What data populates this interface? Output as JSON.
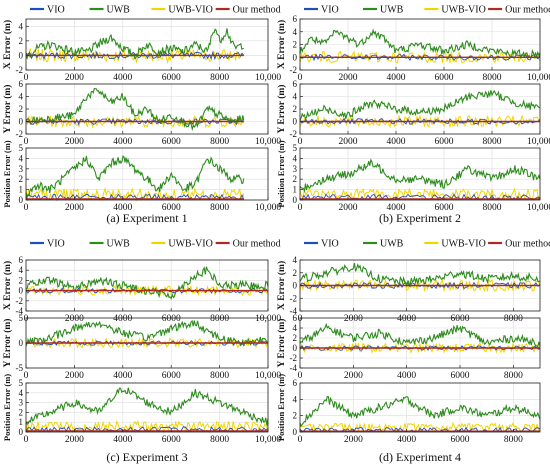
{
  "legend": {
    "entries": [
      {
        "name": "VIO",
        "color": "#1f4fbf"
      },
      {
        "name": "UWB",
        "color": "#2e8b1e"
      },
      {
        "name": "UWB-VIO",
        "color": "#f2d500"
      },
      {
        "name": "Our method",
        "color": "#b0281e"
      }
    ]
  },
  "captions": [
    "(a)  Experiment 1",
    "(b)  Experiment 2",
    "(c)  Experiment 3",
    "(d)  Experiment 4"
  ],
  "chart_data": [
    {
      "type": "line",
      "experiment": "Experiment 1",
      "subplot": "x-error",
      "ylabel": "X Error (m)",
      "xlim": [
        0,
        10000
      ],
      "ylim": [
        -2,
        5
      ],
      "yticks": [
        -2,
        0,
        2,
        4
      ],
      "xticks": [
        0,
        2000,
        4000,
        6000,
        8000,
        10000
      ],
      "xticklabels": [
        "0",
        "2000",
        "4000",
        "6000",
        "8000",
        "10,000"
      ],
      "grid": true,
      "series": [
        {
          "name": "UWB",
          "x": [
            0,
            500,
            1000,
            1500,
            2000,
            2500,
            3000,
            3500,
            4000,
            4500,
            5000,
            5500,
            6000,
            6500,
            7000,
            7500,
            7800,
            8000,
            8300,
            8600,
            9000
          ],
          "y": [
            0,
            1,
            1.5,
            1,
            0.5,
            0.5,
            1.5,
            2.5,
            1,
            0,
            1.5,
            0.5,
            1,
            0.5,
            1.5,
            0.5,
            4,
            2,
            3.5,
            1,
            1.5
          ]
        },
        {
          "name": "Our method",
          "x": [
            0,
            9000
          ],
          "y": [
            0,
            0
          ]
        }
      ]
    },
    {
      "type": "line",
      "experiment": "Experiment 1",
      "subplot": "y-error",
      "ylabel": "Y Error (m)",
      "xlim": [
        0,
        10000
      ],
      "ylim": [
        -2,
        6
      ],
      "yticks": [
        -2,
        0,
        2,
        4,
        6
      ],
      "xticks": [
        0,
        2000,
        4000,
        6000,
        8000,
        10000
      ],
      "xticklabels": [
        "0",
        "2000",
        "4000",
        "6000",
        "8000",
        "10,000"
      ],
      "grid": true,
      "series": [
        {
          "name": "UWB",
          "x": [
            0,
            1000,
            2000,
            2500,
            3000,
            3500,
            4000,
            4500,
            5000,
            5500,
            6000,
            6500,
            7000,
            7500,
            8000,
            8500,
            9000
          ],
          "y": [
            0,
            0.5,
            1,
            4,
            5,
            3,
            4,
            1,
            2,
            0,
            1,
            0,
            -1,
            2,
            1,
            0,
            0.5
          ]
        },
        {
          "name": "Our method",
          "x": [
            0,
            9000
          ],
          "y": [
            0,
            0
          ]
        }
      ]
    },
    {
      "type": "line",
      "experiment": "Experiment 1",
      "subplot": "position-error",
      "ylabel": "Position Error (m)",
      "xlim": [
        0,
        10000
      ],
      "ylim": [
        0,
        5
      ],
      "yticks": [
        0,
        1,
        2,
        3,
        4,
        5
      ],
      "xticks": [
        0,
        2000,
        4000,
        6000,
        8000,
        10000
      ],
      "xticklabels": [
        "0",
        "2000",
        "4000",
        "6000",
        "8000",
        "10,000"
      ],
      "grid": true,
      "series": [
        {
          "name": "UWB",
          "x": [
            0,
            500,
            1000,
            1500,
            2000,
            2500,
            3000,
            3500,
            4000,
            4500,
            5000,
            5500,
            6000,
            6500,
            7000,
            7500,
            8000,
            8500,
            9000
          ],
          "y": [
            0.5,
            1.5,
            1,
            2,
            3,
            4,
            2,
            3.5,
            4,
            3,
            2,
            1,
            2.5,
            1,
            1.5,
            4,
            3,
            2,
            2
          ]
        },
        {
          "name": "Our method",
          "x": [
            0,
            9000
          ],
          "y": [
            0.1,
            0.1
          ]
        }
      ]
    },
    {
      "type": "line",
      "experiment": "Experiment 2",
      "subplot": "x-error",
      "ylabel": "X Error (m)",
      "xlim": [
        0,
        10000
      ],
      "ylim": [
        -2,
        6
      ],
      "yticks": [
        -2,
        0,
        2,
        4,
        6
      ],
      "xticks": [
        0,
        2000,
        4000,
        6000,
        8000,
        10000
      ],
      "xticklabels": [
        "0",
        "2000",
        "4000",
        "6000",
        "8000",
        "10,000"
      ],
      "grid": true,
      "series": [
        {
          "name": "UWB",
          "x": [
            0,
            500,
            1000,
            1500,
            2000,
            2500,
            3000,
            3500,
            4000,
            5000,
            6000,
            7000,
            8000,
            9000,
            10000
          ],
          "y": [
            1,
            3,
            2,
            4,
            3,
            2,
            4,
            3,
            1,
            2,
            1,
            2,
            1,
            0.5,
            0.5
          ]
        },
        {
          "name": "Our method",
          "x": [
            0,
            10000
          ],
          "y": [
            0,
            0
          ]
        }
      ]
    },
    {
      "type": "line",
      "experiment": "Experiment 2",
      "subplot": "y-error",
      "ylabel": "Y Error (m)",
      "xlim": [
        0,
        10000
      ],
      "ylim": [
        -2,
        6
      ],
      "yticks": [
        -2,
        0,
        2,
        4,
        6
      ],
      "xticks": [
        0,
        2000,
        4000,
        6000,
        8000,
        10000
      ],
      "xticklabels": [
        "0",
        "2000",
        "4000",
        "6000",
        "8000",
        "10,000"
      ],
      "grid": true,
      "series": [
        {
          "name": "UWB",
          "x": [
            0,
            1000,
            2000,
            3000,
            4000,
            5000,
            6000,
            7000,
            8000,
            9000,
            10000
          ],
          "y": [
            0.5,
            2,
            1,
            3,
            2,
            1.5,
            2,
            4,
            4.5,
            3,
            2
          ]
        },
        {
          "name": "Our method",
          "x": [
            0,
            10000
          ],
          "y": [
            0,
            0
          ]
        }
      ]
    },
    {
      "type": "line",
      "experiment": "Experiment 2",
      "subplot": "position-error",
      "ylabel": "Position Error (m)",
      "xlim": [
        0,
        10000
      ],
      "ylim": [
        0,
        5
      ],
      "yticks": [
        0,
        1,
        2,
        3,
        4,
        5
      ],
      "xticks": [
        0,
        2000,
        4000,
        6000,
        8000,
        10000
      ],
      "xticklabels": [
        "0",
        "2000",
        "4000",
        "6000",
        "8000",
        "10,000"
      ],
      "grid": true,
      "series": [
        {
          "name": "UWB",
          "x": [
            0,
            1000,
            2000,
            3000,
            4000,
            5000,
            6000,
            7000,
            8000,
            9000,
            10000
          ],
          "y": [
            1,
            2,
            2.5,
            3.5,
            2,
            2,
            1.5,
            3,
            2,
            3,
            2
          ]
        },
        {
          "name": "Our method",
          "x": [
            0,
            10000
          ],
          "y": [
            0.1,
            0.1
          ]
        }
      ]
    },
    {
      "type": "line",
      "experiment": "Experiment 3",
      "subplot": "x-error",
      "ylabel": "X Error (m)",
      "xlim": [
        0,
        10000
      ],
      "ylim": [
        -4,
        6
      ],
      "yticks": [
        -4,
        -2,
        0,
        2,
        4,
        6
      ],
      "xticks": [
        0,
        2000,
        4000,
        6000,
        8000,
        10000
      ],
      "xticklabels": [
        "0",
        "2000",
        "4000",
        "6000",
        "8000",
        "10,000"
      ],
      "grid": true,
      "series": [
        {
          "name": "UWB",
          "x": [
            0,
            1000,
            2000,
            3000,
            4000,
            5000,
            6000,
            7000,
            7500,
            8000,
            9000,
            10000
          ],
          "y": [
            1,
            2,
            0.5,
            2,
            1,
            0,
            -1,
            3,
            4,
            1,
            1,
            1
          ]
        },
        {
          "name": "Our method",
          "x": [
            0,
            10000
          ],
          "y": [
            0,
            0
          ]
        }
      ]
    },
    {
      "type": "line",
      "experiment": "Experiment 3",
      "subplot": "y-error",
      "ylabel": "Y Error (m)",
      "xlim": [
        0,
        10000
      ],
      "ylim": [
        -5,
        5
      ],
      "yticks": [
        -5,
        0,
        5
      ],
      "xticks": [
        0,
        2000,
        4000,
        6000,
        8000,
        10000
      ],
      "xticklabels": [
        "0",
        "2000",
        "4000",
        "6000",
        "8000",
        "10,000"
      ],
      "grid": true,
      "series": [
        {
          "name": "UWB",
          "x": [
            0,
            1000,
            2000,
            3000,
            4000,
            5000,
            6000,
            7000,
            8000,
            9000,
            10000
          ],
          "y": [
            0,
            1,
            3,
            4,
            2,
            1,
            3,
            4,
            1,
            0,
            1
          ]
        },
        {
          "name": "Our method",
          "x": [
            0,
            10000
          ],
          "y": [
            0,
            0
          ]
        }
      ]
    },
    {
      "type": "line",
      "experiment": "Experiment 3",
      "subplot": "position-error",
      "ylabel": "Position Error (m)",
      "xlim": [
        0,
        10000
      ],
      "ylim": [
        0,
        5
      ],
      "yticks": [
        0,
        1,
        2,
        3,
        4,
        5
      ],
      "xticks": [
        0,
        2000,
        4000,
        6000,
        8000,
        10000
      ],
      "xticklabels": [
        "0",
        "2000",
        "4000",
        "6000",
        "8000",
        "10,000"
      ],
      "grid": true,
      "series": [
        {
          "name": "UWB",
          "x": [
            0,
            1000,
            2000,
            3000,
            4000,
            5000,
            6000,
            7000,
            8000,
            9000,
            10000
          ],
          "y": [
            1,
            2,
            3,
            2,
            4.5,
            3,
            2,
            4,
            3,
            2,
            1
          ]
        },
        {
          "name": "Our method",
          "x": [
            0,
            10000
          ],
          "y": [
            0.1,
            0.1
          ]
        }
      ]
    },
    {
      "type": "line",
      "experiment": "Experiment 4",
      "subplot": "x-error",
      "ylabel": "X Error (m)",
      "xlim": [
        0,
        9000
      ],
      "ylim": [
        -4,
        4
      ],
      "yticks": [
        -4,
        -2,
        0,
        2,
        4
      ],
      "xticks": [
        0,
        2000,
        4000,
        6000,
        8000
      ],
      "xticklabels": [
        "0",
        "2000",
        "4000",
        "6000",
        "8000"
      ],
      "grid": true,
      "series": [
        {
          "name": "UWB",
          "x": [
            0,
            1000,
            2000,
            3000,
            4000,
            5000,
            6000,
            7000,
            8000,
            9000
          ],
          "y": [
            1,
            2,
            3,
            1,
            0.5,
            1,
            2,
            1,
            1.5,
            1
          ]
        },
        {
          "name": "Our method",
          "x": [
            0,
            9000
          ],
          "y": [
            0,
            0
          ]
        }
      ]
    },
    {
      "type": "line",
      "experiment": "Experiment 4",
      "subplot": "y-error",
      "ylabel": "Y Error (m)",
      "xlim": [
        0,
        9000
      ],
      "ylim": [
        -4,
        6
      ],
      "yticks": [
        -4,
        -2,
        0,
        2,
        4,
        6
      ],
      "xticks": [
        0,
        2000,
        4000,
        6000,
        8000
      ],
      "xticklabels": [
        "0",
        "2000",
        "4000",
        "6000",
        "8000"
      ],
      "grid": true,
      "series": [
        {
          "name": "UWB",
          "x": [
            0,
            1000,
            2000,
            3000,
            4000,
            5000,
            6000,
            7000,
            8000,
            9000
          ],
          "y": [
            1,
            4,
            2,
            3,
            1,
            2,
            4,
            1,
            2,
            1
          ]
        },
        {
          "name": "Our method",
          "x": [
            0,
            9000
          ],
          "y": [
            0,
            0
          ]
        }
      ]
    },
    {
      "type": "line",
      "experiment": "Experiment 4",
      "subplot": "position-error",
      "ylabel": "Position Error (m)",
      "xlim": [
        0,
        9000
      ],
      "ylim": [
        0,
        6
      ],
      "yticks": [
        0,
        2,
        4,
        6
      ],
      "xticks": [
        0,
        2000,
        4000,
        6000,
        8000
      ],
      "xticklabels": [
        "0",
        "2000",
        "4000",
        "6000",
        "8000"
      ],
      "grid": true,
      "series": [
        {
          "name": "UWB",
          "x": [
            0,
            1000,
            2000,
            3000,
            4000,
            5000,
            6000,
            7000,
            8000,
            9000
          ],
          "y": [
            1,
            4,
            2,
            3,
            4,
            2,
            3,
            2,
            3,
            2
          ]
        },
        {
          "name": "Our method",
          "x": [
            0,
            9000
          ],
          "y": [
            0.1,
            0.1
          ]
        }
      ]
    }
  ]
}
